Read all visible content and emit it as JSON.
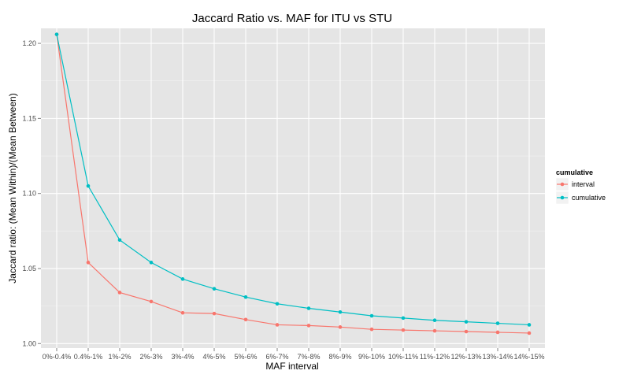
{
  "chart_data": {
    "type": "line",
    "title": "Jaccard Ratio vs. MAF for ITU vs STU",
    "xlabel": "MAF interval",
    "ylabel": "Jaccard ratio: (Mean Within)/(Mean Between)",
    "categories": [
      "0%-0.4%",
      "0.4%-1%",
      "1%-2%",
      "2%-3%",
      "3%-4%",
      "4%-5%",
      "5%-6%",
      "6%-7%",
      "7%-8%",
      "8%-9%",
      "9%-10%",
      "10%-11%",
      "11%-12%",
      "12%-13%",
      "13%-14%",
      "14%-15%"
    ],
    "y_ticks": [
      "1.00",
      "1.05",
      "1.10",
      "1.15",
      "1.20"
    ],
    "ylim": [
      0.997,
      1.21
    ],
    "grid": true,
    "legend": {
      "title": "cumulative",
      "position": "right"
    },
    "series": [
      {
        "name": "interval",
        "color": "#F8766D",
        "values": [
          1.206,
          1.054,
          1.034,
          1.028,
          1.0205,
          1.02,
          1.016,
          1.0125,
          1.012,
          1.011,
          1.0095,
          1.009,
          1.0085,
          1.008,
          1.0075,
          1.007
        ]
      },
      {
        "name": "cumulative",
        "color": "#00BFC4",
        "values": [
          1.206,
          1.105,
          1.069,
          1.054,
          1.043,
          1.0365,
          1.031,
          1.0265,
          1.0235,
          1.021,
          1.0185,
          1.017,
          1.0155,
          1.0145,
          1.0135,
          1.0125
        ]
      }
    ]
  }
}
